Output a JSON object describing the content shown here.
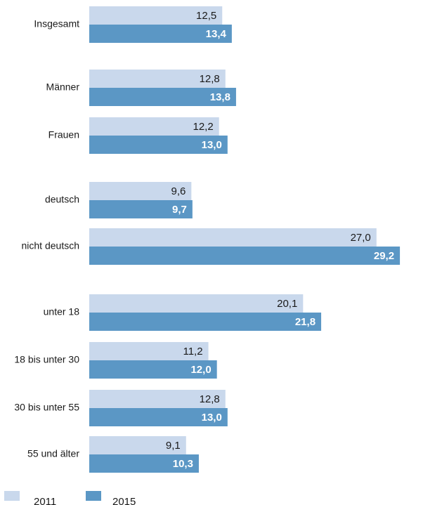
{
  "chart_data": {
    "type": "bar",
    "orientation": "horizontal",
    "categories": [
      "Insgesamt",
      "Männer",
      "Frauen",
      "deutsch",
      "nicht deutsch",
      "unter 18",
      "18 bis unter 30",
      "30 bis unter 55",
      "55 und älter"
    ],
    "series": [
      {
        "name": "2011",
        "color": "#c9d8ec",
        "values": [
          12.5,
          12.8,
          12.2,
          9.6,
          27.0,
          20.1,
          11.2,
          12.8,
          9.1
        ],
        "value_labels": [
          "12,5",
          "12,8",
          "12,2",
          "9,6",
          "27,0",
          "20,1",
          "11,2",
          "12,8",
          "9,1"
        ]
      },
      {
        "name": "2015",
        "color": "#5b97c5",
        "values": [
          13.4,
          13.8,
          13.0,
          9.7,
          29.2,
          21.8,
          12.0,
          13.0,
          10.3
        ],
        "value_labels": [
          "13,4",
          "13,8",
          "13,0",
          "9,7",
          "29,2",
          "21,8",
          "12,0",
          "13,0",
          "10,3"
        ]
      }
    ],
    "title": "",
    "xlabel": "",
    "ylabel": "",
    "xlim": [
      0,
      29.2
    ],
    "grid": false,
    "legend": "bottom-left"
  }
}
